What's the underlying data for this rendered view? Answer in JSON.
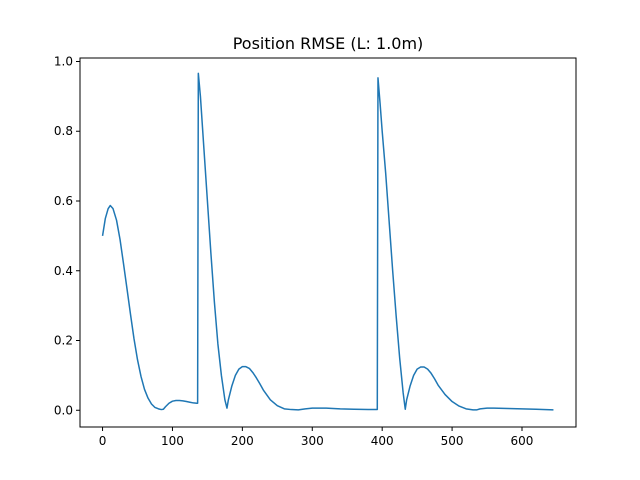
{
  "chart_data": {
    "type": "line",
    "title": "Position RMSE (L: 1.0m)",
    "xlabel": "",
    "ylabel": "",
    "xlim": [
      -32.25,
      677.25
    ],
    "ylim": [
      -0.048,
      1.01
    ],
    "xticks": [
      0,
      100,
      200,
      300,
      400,
      500,
      600
    ],
    "yticks": [
      0.0,
      0.2,
      0.4,
      0.6,
      0.8,
      1.0
    ],
    "xtick_labels": [
      "0",
      "100",
      "200",
      "300",
      "400",
      "500",
      "600"
    ],
    "ytick_labels": [
      "0.0",
      "0.2",
      "0.4",
      "0.6",
      "0.8",
      "1.0"
    ],
    "grid": false,
    "line_color": "#1f77b4",
    "series": [
      {
        "x": [
          0,
          4,
          8,
          11,
          15,
          20,
          25,
          30,
          35,
          40,
          45,
          50,
          55,
          60,
          65,
          70,
          75,
          80,
          84,
          87,
          90,
          95,
          100,
          105,
          110,
          115,
          120,
          125,
          130,
          135,
          136,
          137,
          140,
          145,
          150,
          155,
          160,
          165,
          170,
          175,
          178,
          180,
          185,
          190,
          195,
          200,
          205,
          210,
          215,
          220,
          225,
          230,
          240,
          250,
          260,
          270,
          280,
          290,
          300,
          320,
          340,
          360,
          380,
          392,
          393,
          394,
          397,
          400,
          405,
          410,
          415,
          420,
          425,
          430,
          433,
          435,
          440,
          445,
          450,
          455,
          460,
          465,
          470,
          475,
          480,
          490,
          500,
          510,
          520,
          530,
          535,
          540,
          550,
          560,
          580,
          600,
          620,
          645
        ],
        "y": [
          0.5,
          0.55,
          0.578,
          0.587,
          0.578,
          0.545,
          0.49,
          0.42,
          0.348,
          0.275,
          0.205,
          0.145,
          0.097,
          0.06,
          0.035,
          0.018,
          0.008,
          0.004,
          0.002,
          0.003,
          0.01,
          0.02,
          0.026,
          0.028,
          0.028,
          0.027,
          0.025,
          0.023,
          0.021,
          0.02,
          0.02,
          0.966,
          0.9,
          0.75,
          0.6,
          0.45,
          0.31,
          0.19,
          0.1,
          0.03,
          0.006,
          0.03,
          0.07,
          0.1,
          0.118,
          0.125,
          0.125,
          0.12,
          0.108,
          0.093,
          0.076,
          0.058,
          0.03,
          0.013,
          0.004,
          0.002,
          0.001,
          0.004,
          0.006,
          0.006,
          0.004,
          0.003,
          0.002,
          0.002,
          0.002,
          0.953,
          0.88,
          0.8,
          0.68,
          0.54,
          0.4,
          0.27,
          0.15,
          0.05,
          0.003,
          0.03,
          0.07,
          0.1,
          0.118,
          0.124,
          0.124,
          0.118,
          0.106,
          0.09,
          0.072,
          0.045,
          0.025,
          0.012,
          0.004,
          0.001,
          0.001,
          0.004,
          0.006,
          0.006,
          0.005,
          0.004,
          0.003,
          0.001
        ]
      }
    ]
  }
}
